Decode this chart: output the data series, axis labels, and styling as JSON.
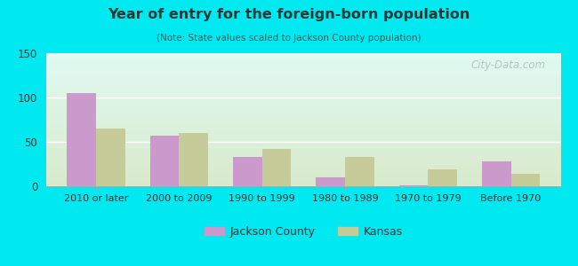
{
  "title": "Year of entry for the foreign-born population",
  "subtitle": "(Note: State values scaled to Jackson County population)",
  "categories": [
    "2010 or later",
    "2000 to 2009",
    "1990 to 1999",
    "1980 to 1989",
    "1970 to 1979",
    "Before 1970"
  ],
  "jackson_county": [
    105,
    57,
    33,
    10,
    1,
    28
  ],
  "kansas": [
    65,
    60,
    42,
    33,
    19,
    14
  ],
  "jackson_color": "#cc99cc",
  "kansas_color": "#c5cc99",
  "background_outer": "#00e8f0",
  "ylim": [
    0,
    150
  ],
  "yticks": [
    0,
    50,
    100,
    150
  ],
  "bar_width": 0.35,
  "legend_labels": [
    "Jackson County",
    "Kansas"
  ],
  "watermark": "City-Data.com",
  "title_color": "#1a3a3a",
  "subtitle_color": "#2a6060"
}
